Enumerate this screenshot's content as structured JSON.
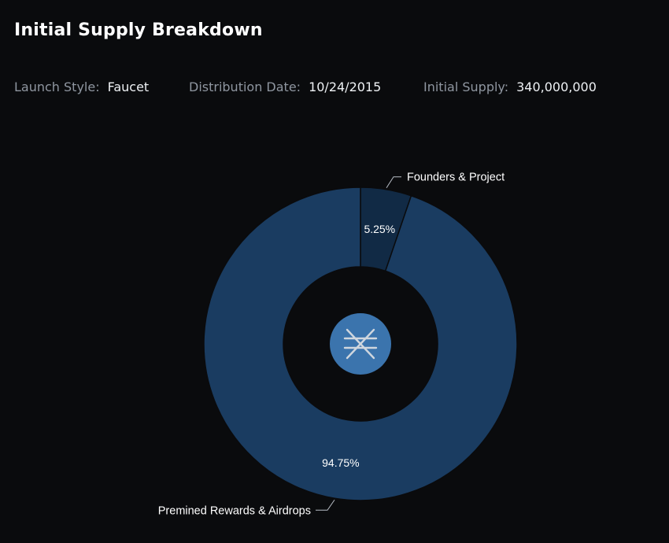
{
  "header": {
    "title": "Initial Supply Breakdown"
  },
  "meta": {
    "launch_style_label": "Launch Style:",
    "launch_style_value": "Faucet",
    "distribution_date_label": "Distribution Date:",
    "distribution_date_value": "10/24/2015",
    "initial_supply_label": "Initial Supply:",
    "initial_supply_value": "340,000,000"
  },
  "colors": {
    "background": "#0a0b0d",
    "slice_main": "#1a3c61",
    "slice_small": "#112a45",
    "center_icon": "#3b74ad",
    "text_muted": "#8f96a0"
  },
  "center_icon": {
    "name": "nem-xem-logo-icon"
  },
  "chart_data": {
    "type": "pie",
    "subtype": "donut",
    "categories": [
      "Founders & Project",
      "Premined Rewards & Airdrops"
    ],
    "values": [
      5.25,
      94.75
    ],
    "value_labels": [
      "5.25%",
      "94.75%"
    ],
    "unit": "%",
    "legend": "none"
  }
}
